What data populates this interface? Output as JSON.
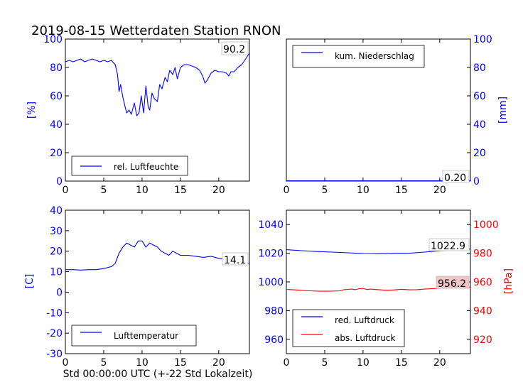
{
  "page_title": "2019-08-15 Wetterdaten Station RNON",
  "colors": {
    "blue": "#0000ff",
    "red": "#ff0000",
    "black": "#000000",
    "value_box_red": "#f2c6c6"
  },
  "chart_data": [
    {
      "id": "humidity",
      "type": "line",
      "xlim": [
        0,
        24
      ],
      "ylim": [
        0,
        100
      ],
      "xticks": [
        0,
        5,
        10,
        15,
        20
      ],
      "yticks": [
        0,
        20,
        40,
        60,
        80,
        100
      ],
      "left_ylabel": "[%]",
      "right_ylabel": "",
      "legend_position": "lower-left",
      "series": [
        {
          "name": "rel. Luftfeuchte",
          "color": "#0000ff",
          "axis": "left",
          "x": [
            0,
            0.5,
            1,
            1.5,
            2,
            2.5,
            3,
            3.5,
            4,
            4.5,
            5,
            5.5,
            6,
            6.5,
            6.8,
            7,
            7.2,
            7.5,
            7.8,
            8,
            8.3,
            8.6,
            9,
            9.3,
            9.6,
            9.9,
            10.2,
            10.5,
            10.8,
            11,
            11.3,
            11.6,
            12,
            12.3,
            12.6,
            13,
            13.3,
            13.6,
            14,
            14.3,
            14.6,
            15,
            15.5,
            16,
            16.5,
            17,
            17.5,
            17.9,
            18.2,
            18.5,
            19,
            19.5,
            20,
            20.5,
            21,
            21.3,
            21.6,
            22,
            22.5,
            23,
            23.5,
            24
          ],
          "y": [
            84,
            85,
            84,
            85,
            86,
            84,
            85,
            86,
            85,
            84,
            85,
            84,
            85,
            82,
            75,
            63,
            68,
            59,
            52,
            48,
            50,
            47,
            55,
            46,
            48,
            60,
            48,
            67,
            52,
            50,
            62,
            58,
            56,
            68,
            65,
            73,
            70,
            78,
            75,
            80,
            72,
            80,
            82,
            82,
            81,
            80,
            78,
            74,
            69,
            71,
            76,
            78,
            77,
            77,
            76,
            74,
            77,
            77,
            80,
            82,
            86,
            90
          ]
        }
      ],
      "value_label": "90.2"
    },
    {
      "id": "precipitation",
      "type": "line",
      "xlim": [
        0,
        24
      ],
      "ylim": [
        0,
        100
      ],
      "xticks": [
        0,
        5,
        10,
        15,
        20
      ],
      "yticks": [
        0,
        20,
        40,
        60,
        80,
        100
      ],
      "left_ylabel": "",
      "right_ylabel": "[mm]",
      "legend_position": "upper-left",
      "series": [
        {
          "name": "kum. Niederschlag",
          "color": "#0000ff",
          "axis": "right",
          "x": [
            0,
            24
          ],
          "y": [
            0.2,
            0.2
          ]
        }
      ],
      "value_label": "0.20"
    },
    {
      "id": "temperature",
      "type": "line",
      "xlim": [
        0,
        24
      ],
      "ylim": [
        -30,
        40
      ],
      "xticks": [
        0,
        5,
        10,
        15,
        20
      ],
      "yticks": [
        -30,
        -20,
        -10,
        0,
        10,
        20,
        30,
        40
      ],
      "left_ylabel": "[C]",
      "right_ylabel": "",
      "xlabel": "Std 00:00:00 UTC (+-22 Std Lokalzeit)",
      "legend_position": "lower-left",
      "series": [
        {
          "name": "Lufttemperatur",
          "color": "#0000ff",
          "axis": "left",
          "x": [
            0,
            1,
            2,
            3,
            4,
            5,
            6,
            6.5,
            7,
            7.5,
            8,
            8.5,
            9,
            9.5,
            10,
            10.5,
            11,
            11.5,
            12,
            12.5,
            13,
            13.5,
            14,
            14.5,
            15,
            16,
            17,
            18,
            19,
            20,
            21,
            22,
            23,
            24
          ],
          "y": [
            11,
            11,
            10.8,
            11,
            11,
            11.5,
            12.5,
            14,
            19,
            22,
            24,
            23,
            22,
            25,
            25,
            22,
            24,
            23,
            22,
            20,
            19,
            18,
            20,
            19,
            18,
            18,
            17.5,
            17,
            17.5,
            16.5,
            16,
            15.5,
            14.5,
            14.1
          ]
        }
      ],
      "value_label": "14.1"
    },
    {
      "id": "pressure",
      "type": "line",
      "xlim": [
        0,
        24
      ],
      "ylim": [
        950,
        1050
      ],
      "xticks": [
        0,
        5,
        10,
        15,
        20
      ],
      "yticks": [
        960,
        980,
        1000,
        1020,
        1040
      ],
      "right_ylim": [
        910,
        1010
      ],
      "right_yticks": [
        920,
        940,
        960,
        980,
        1000
      ],
      "left_ylabel": "",
      "right_ylabel": "[hPa]",
      "legend_position": "lower-left",
      "series": [
        {
          "name": "red. Luftdruck",
          "color": "#0000ff",
          "axis": "left",
          "x": [
            0,
            2,
            4,
            6,
            8,
            10,
            12,
            14,
            16,
            18,
            20,
            22,
            24
          ],
          "y": [
            1022.5,
            1021.8,
            1021.2,
            1020.8,
            1020.3,
            1019.8,
            1019.7,
            1019.9,
            1020.0,
            1020.8,
            1021.7,
            1022.4,
            1022.9
          ]
        },
        {
          "name": "abs. Luftdruck",
          "color": "#ff0000",
          "axis": "right",
          "x": [
            0,
            1,
            2,
            3,
            4,
            5,
            6,
            7,
            7.5,
            8,
            8.5,
            9,
            9.5,
            10,
            10.5,
            11,
            12,
            13,
            14,
            15,
            16,
            17,
            18,
            19,
            20,
            21,
            22,
            23,
            24
          ],
          "y": [
            954.8,
            954.5,
            954.1,
            953.8,
            953.6,
            953.5,
            953.6,
            953.8,
            954.6,
            954.8,
            955.0,
            954.6,
            955.3,
            955.5,
            954.7,
            955.0,
            954.6,
            954.2,
            954.4,
            954.9,
            954.5,
            954.6,
            955.0,
            955.3,
            955.6,
            955.8,
            956.0,
            956.1,
            956.2
          ]
        }
      ],
      "value_labels": [
        "1022.9",
        "956.2"
      ]
    }
  ]
}
